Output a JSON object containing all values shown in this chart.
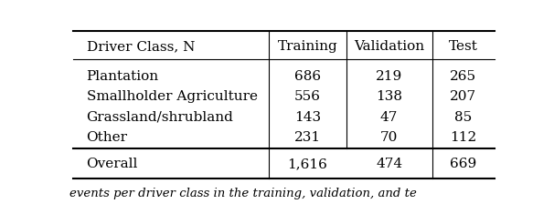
{
  "columns": [
    "Driver Class, N",
    "Training",
    "Validation",
    "Test"
  ],
  "rows": [
    [
      "Plantation",
      "686",
      "219",
      "265"
    ],
    [
      "Smallholder Agriculture",
      "556",
      "138",
      "207"
    ],
    [
      "Grassland/shrubland",
      "143",
      "47",
      "85"
    ],
    [
      "Other",
      "231",
      "70",
      "112"
    ]
  ],
  "footer_row": [
    "Overall",
    "1,616",
    "474",
    "669"
  ],
  "header_fontsize": 11,
  "body_fontsize": 11,
  "background_color": "#ffffff",
  "text_color": "#000000",
  "caption_text": "events per driver class in the training, validation, and te"
}
